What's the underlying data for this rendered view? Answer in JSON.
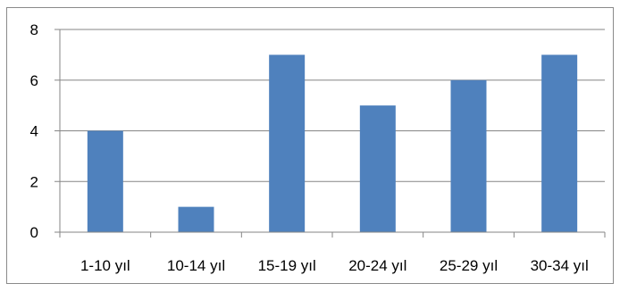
{
  "chart_data": {
    "type": "bar",
    "categories": [
      "1-10 yıl",
      "10-14 yıl",
      "15-19 yıl",
      "20-24 yıl",
      "25-29 yıl",
      "30-34 yıl"
    ],
    "values": [
      4,
      1,
      7,
      5,
      6,
      7
    ],
    "ylim": [
      0,
      8
    ],
    "yticks": [
      "0",
      "2",
      "4",
      "6",
      "8"
    ],
    "grid": true,
    "legend": "none",
    "bar_color": "#4f81bd",
    "grid_color": "#868686",
    "title": "",
    "xlabel": "",
    "ylabel": ""
  }
}
